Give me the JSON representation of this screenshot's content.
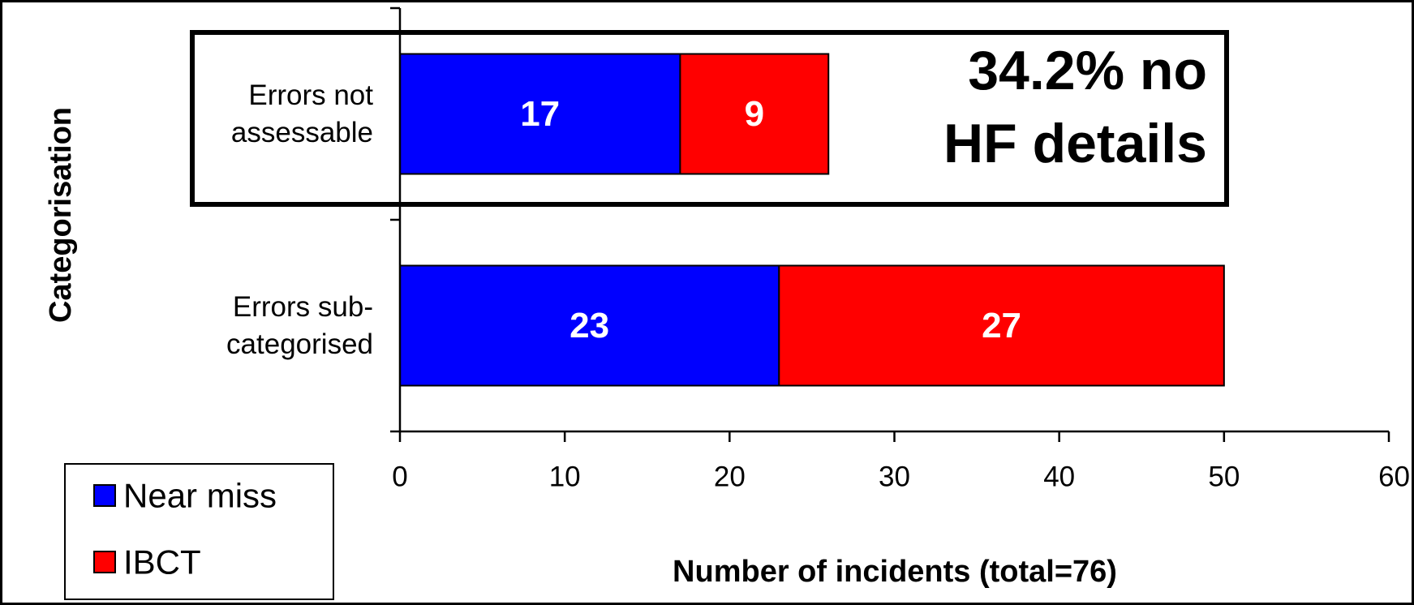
{
  "chart_data": {
    "type": "bar",
    "orientation": "horizontal",
    "stacked": true,
    "categories": [
      "Errors not assessable",
      "Errors sub-categorised"
    ],
    "category_lines": [
      [
        "Errors not",
        "assessable"
      ],
      [
        "Errors sub-",
        "categorised"
      ]
    ],
    "series": [
      {
        "name": "Near miss",
        "values": [
          17,
          23
        ],
        "color": "#0000ff"
      },
      {
        "name": "IBCT",
        "values": [
          9,
          27
        ],
        "color": "#ff0000"
      }
    ],
    "xlabel": "Number of incidents (total=76)",
    "ylabel": "Categorisation",
    "xlim": [
      0,
      60
    ],
    "xticks": [
      "0",
      "10",
      "20",
      "30",
      "40",
      "50",
      "60"
    ],
    "grid": false,
    "legend_position": "bottom-left",
    "annotation": {
      "lines": [
        "34.2% no",
        "HF details"
      ],
      "highlights_category": "Errors not assessable"
    }
  }
}
